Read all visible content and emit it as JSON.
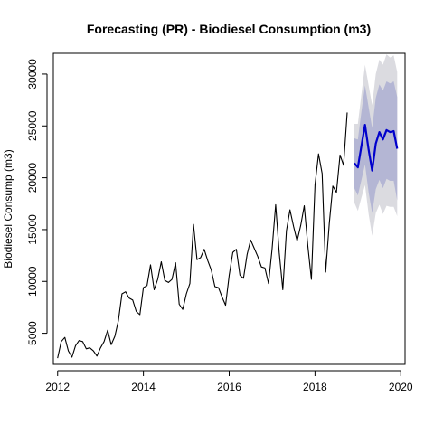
{
  "chart_data": {
    "type": "line",
    "title": "Forecasting (PR) - Biodiesel Consumption (m3)",
    "xlabel": "",
    "ylabel": "Biodiesel Consump (m3)",
    "xlim": [
      2011.9,
      2020.1
    ],
    "ylim": [
      2000,
      32000
    ],
    "xticks": [
      2012,
      2014,
      2016,
      2018,
      2020
    ],
    "yticks": [
      5000,
      10000,
      15000,
      20000,
      25000,
      30000
    ],
    "grid": false,
    "legend": "none",
    "colors": {
      "history": "#000000",
      "forecast_mean": "#0000cc",
      "band_outer": "#dbdbe0",
      "band_inner": "#b4b6d4"
    },
    "history": {
      "start": 2012.0,
      "step": 0.0833333,
      "values": [
        2600,
        4200,
        4600,
        3300,
        2700,
        3800,
        4300,
        4200,
        3500,
        3600,
        3300,
        2800,
        3600,
        4200,
        5300,
        3900,
        4700,
        6200,
        8800,
        9000,
        8400,
        8200,
        7100,
        6800,
        9400,
        9600,
        11600,
        9200,
        10200,
        11900,
        10100,
        9900,
        10200,
        11800,
        7800,
        7300,
        8800,
        9800,
        15500,
        12100,
        12300,
        13100,
        12000,
        11100,
        9500,
        9400,
        8500,
        7700,
        10600,
        12800,
        13100,
        10600,
        10300,
        12600,
        14000,
        13200,
        12400,
        11400,
        11300,
        9800,
        13100,
        17400,
        12800,
        9200,
        14900,
        16900,
        15300,
        13900,
        15400,
        17300,
        13400,
        10200,
        19300,
        22300,
        20400,
        10900,
        15600,
        19200,
        18600,
        22200,
        21200,
        26300
      ]
    },
    "forecast": {
      "start": 2018.917,
      "step": 0.0833333,
      "mean": [
        21400,
        21000,
        23100,
        25100,
        22700,
        20700,
        23300,
        24400,
        23700,
        24600,
        24400,
        24500,
        22800
      ],
      "lo80": [
        19000,
        18300,
        19800,
        21300,
        18600,
        16600,
        18900,
        19800,
        19000,
        19900,
        19700,
        19700,
        17800
      ],
      "hi80": [
        23800,
        23700,
        26400,
        28900,
        26800,
        24800,
        27700,
        29000,
        28400,
        29300,
        29100,
        29300,
        27800
      ],
      "lo95": [
        17600,
        16800,
        18100,
        19300,
        16500,
        14400,
        16600,
        17400,
        16500,
        17300,
        17200,
        17200,
        16300
      ],
      "hi95": [
        25200,
        25200,
        28100,
        30900,
        28900,
        27000,
        30000,
        31400,
        30900,
        31900,
        31600,
        31800,
        30200
      ]
    }
  }
}
